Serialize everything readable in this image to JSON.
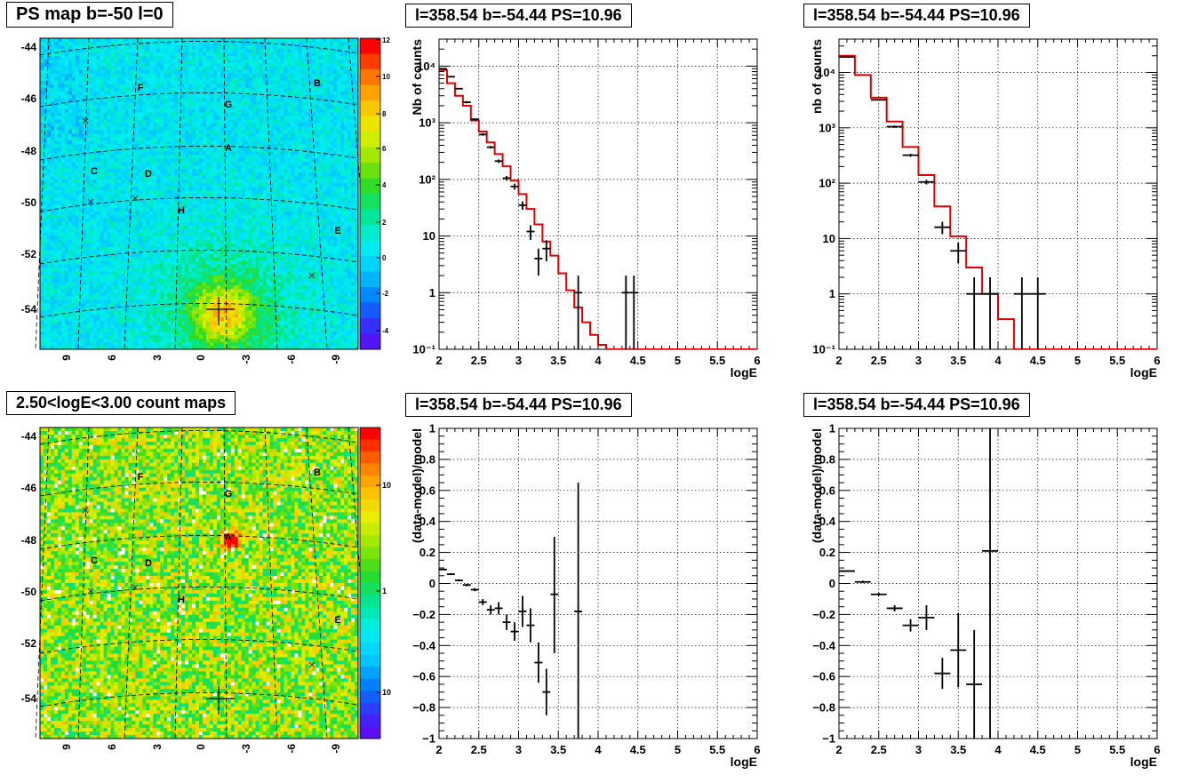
{
  "maps": [
    {
      "title": "PS map b=-50 l=0",
      "kind": "ps",
      "y_ticks": [
        "-44",
        "-46",
        "-48",
        "-50",
        "-52",
        "-54"
      ],
      "x_ticks": [
        "9",
        "6",
        "3",
        "0",
        "-3",
        "-6",
        "-9"
      ],
      "colorbar_ticks": [
        "12",
        "10",
        "8",
        "6",
        "4",
        "2",
        "0",
        "-2",
        "-4"
      ],
      "labels": [
        "A",
        "B",
        "C",
        "D",
        "E",
        "F",
        "G",
        "H"
      ]
    },
    {
      "title": "2.50<logE<3.00 count maps",
      "kind": "count",
      "y_ticks": [
        "-44",
        "-46",
        "-48",
        "-50",
        "-52",
        "-54"
      ],
      "x_ticks": [
        "9",
        "6",
        "3",
        "0",
        "-3",
        "-6",
        "-9"
      ],
      "colorbar_ticks": [
        "10",
        "1",
        "10⁻¹"
      ],
      "labels": [
        "A",
        "B",
        "C",
        "D",
        "E",
        "F",
        "G",
        "H"
      ]
    }
  ],
  "chart_data": [
    {
      "type": "line",
      "title": "l=358.54 b=-54.44 PS=10.96",
      "xlabel": "logE",
      "ylabel": "Nb of counts",
      "xlim": [
        2,
        6
      ],
      "ylim": [
        0.1,
        30000
      ],
      "yscale": "log",
      "grid": true,
      "x_ticks": [
        "2",
        "2.5",
        "3",
        "3.5",
        "4",
        "4.5",
        "5",
        "5.5",
        "6"
      ],
      "y_ticks": [
        {
          "v": 0.1,
          "label": "10⁻¹"
        },
        {
          "v": 1,
          "label": "1"
        },
        {
          "v": 10,
          "label": "10"
        },
        {
          "v": 100,
          "label": "10²"
        },
        {
          "v": 1000,
          "label": "10³"
        },
        {
          "v": 10000,
          "label": "10⁴"
        }
      ],
      "model_edges": [
        2,
        2.1,
        2.2,
        2.3,
        2.4,
        2.5,
        2.6,
        2.7,
        2.8,
        2.9,
        3,
        3.1,
        3.2,
        3.3,
        3.4,
        3.5,
        3.6,
        3.7,
        3.8,
        3.9,
        4,
        4.1,
        4.2,
        6
      ],
      "model_values": [
        8500,
        5000,
        3000,
        2000,
        1100,
        700,
        450,
        280,
        170,
        95,
        55,
        30,
        16,
        8,
        4.5,
        2.2,
        1.1,
        0.55,
        0.3,
        0.18,
        0.12,
        0.1,
        0.1
      ],
      "data_points": [
        {
          "x": 2.05,
          "y": 9000,
          "ylo": 8800,
          "yhi": 9200
        },
        {
          "x": 2.15,
          "y": 6500,
          "ylo": 6350,
          "yhi": 6650
        },
        {
          "x": 2.25,
          "y": 4000,
          "ylo": 3900,
          "yhi": 4100
        },
        {
          "x": 2.35,
          "y": 2300,
          "ylo": 2200,
          "yhi": 2400
        },
        {
          "x": 2.45,
          "y": 1150,
          "ylo": 1100,
          "yhi": 1200
        },
        {
          "x": 2.55,
          "y": 620,
          "ylo": 590,
          "yhi": 650
        },
        {
          "x": 2.65,
          "y": 370,
          "ylo": 350,
          "yhi": 390
        },
        {
          "x": 2.75,
          "y": 210,
          "ylo": 195,
          "yhi": 225
        },
        {
          "x": 2.85,
          "y": 105,
          "ylo": 95,
          "yhi": 115
        },
        {
          "x": 2.95,
          "y": 75,
          "ylo": 66,
          "yhi": 84
        },
        {
          "x": 3.05,
          "y": 35,
          "ylo": 29,
          "yhi": 41
        },
        {
          "x": 3.15,
          "y": 12,
          "ylo": 8.5,
          "yhi": 15.5
        },
        {
          "x": 3.25,
          "y": 4,
          "ylo": 2,
          "yhi": 6
        },
        {
          "x": 3.35,
          "y": 6,
          "ylo": 3.6,
          "yhi": 8.4
        },
        {
          "x": 3.75,
          "y": 1,
          "ylo": 0.1,
          "yhi": 2
        },
        {
          "x": 4.35,
          "y": 1,
          "ylo": 0.1,
          "yhi": 2
        },
        {
          "x": 4.45,
          "y": 1,
          "ylo": 0.1,
          "yhi": 2
        }
      ]
    },
    {
      "type": "line",
      "title": "l=358.54 b=-54.44 PS=10.96",
      "xlabel": "logE",
      "ylabel": "nb of counts",
      "xlim": [
        2,
        6
      ],
      "ylim": [
        0.1,
        40000
      ],
      "yscale": "log",
      "grid": true,
      "x_ticks": [
        "2",
        "2.5",
        "3",
        "3.5",
        "4",
        "4.5",
        "5",
        "5.5",
        "6"
      ],
      "y_ticks": [
        {
          "v": 0.1,
          "label": "10⁻¹"
        },
        {
          "v": 1,
          "label": "1"
        },
        {
          "v": 10,
          "label": "10"
        },
        {
          "v": 100,
          "label": "10²"
        },
        {
          "v": 1000,
          "label": "10³"
        },
        {
          "v": 10000,
          "label": "10⁴"
        }
      ],
      "model_edges": [
        2,
        2.2,
        2.4,
        2.6,
        2.8,
        3,
        3.2,
        3.4,
        3.6,
        3.8,
        4,
        4.2,
        6
      ],
      "model_values": [
        20000,
        9000,
        3500,
        1300,
        450,
        140,
        38,
        11,
        3,
        1,
        0.35,
        0.1
      ],
      "data_points": [
        {
          "x": 2.1,
          "y": 19000,
          "ylo": 18800,
          "yhi": 19200
        },
        {
          "x": 2.5,
          "y": 3200,
          "ylo": 3100,
          "yhi": 3300
        },
        {
          "x": 2.7,
          "y": 1050,
          "ylo": 1000,
          "yhi": 1100
        },
        {
          "x": 2.9,
          "y": 320,
          "ylo": 300,
          "yhi": 340
        },
        {
          "x": 3.1,
          "y": 105,
          "ylo": 95,
          "yhi": 115
        },
        {
          "x": 3.3,
          "y": 16,
          "ylo": 12,
          "yhi": 20
        },
        {
          "x": 3.5,
          "y": 6,
          "ylo": 3.6,
          "yhi": 8.4
        },
        {
          "x": 3.7,
          "y": 1,
          "ylo": 0.1,
          "yhi": 2
        },
        {
          "x": 3.9,
          "y": 1,
          "ylo": 0.1,
          "yhi": 2
        },
        {
          "x": 4.3,
          "y": 1,
          "ylo": 0.1,
          "yhi": 2
        },
        {
          "x": 4.5,
          "y": 1,
          "ylo": 0.1,
          "yhi": 2
        }
      ]
    },
    {
      "type": "scatter",
      "title": "l=358.54 b=-54.44 PS=10.96",
      "xlabel": "logE",
      "ylabel": "(data-model)/model",
      "xlim": [
        2,
        6
      ],
      "ylim": [
        -1,
        1
      ],
      "grid": true,
      "x_ticks": [
        "2",
        "2.5",
        "3",
        "3.5",
        "4",
        "4.5",
        "5",
        "5.5",
        "6"
      ],
      "y_ticks": [
        {
          "v": -1,
          "label": "−1"
        },
        {
          "v": -0.8,
          "label": "−0.8"
        },
        {
          "v": -0.6,
          "label": "−0.6"
        },
        {
          "v": -0.4,
          "label": "−0.4"
        },
        {
          "v": -0.2,
          "label": "−0.2"
        },
        {
          "v": 0,
          "label": "0"
        },
        {
          "v": 0.2,
          "label": "0.2"
        },
        {
          "v": 0.4,
          "label": "0.4"
        },
        {
          "v": 0.6,
          "label": "0.6"
        },
        {
          "v": 0.8,
          "label": "0.8"
        },
        {
          "v": 1,
          "label": "1"
        }
      ],
      "data_points": [
        {
          "x": 2.05,
          "y": 0.09,
          "ylo": 0.085,
          "yhi": 0.095
        },
        {
          "x": 2.15,
          "y": 0.06,
          "ylo": 0.055,
          "yhi": 0.065
        },
        {
          "x": 2.25,
          "y": 0.02,
          "ylo": 0.014,
          "yhi": 0.026
        },
        {
          "x": 2.35,
          "y": -0.01,
          "ylo": -0.018,
          "yhi": -0.002
        },
        {
          "x": 2.45,
          "y": -0.04,
          "ylo": -0.05,
          "yhi": -0.03
        },
        {
          "x": 2.55,
          "y": -0.12,
          "ylo": -0.14,
          "yhi": -0.1
        },
        {
          "x": 2.65,
          "y": -0.17,
          "ylo": -0.2,
          "yhi": -0.14
        },
        {
          "x": 2.75,
          "y": -0.16,
          "ylo": -0.2,
          "yhi": -0.12
        },
        {
          "x": 2.85,
          "y": -0.25,
          "ylo": -0.3,
          "yhi": -0.2
        },
        {
          "x": 2.95,
          "y": -0.31,
          "ylo": -0.37,
          "yhi": -0.25
        },
        {
          "x": 3.05,
          "y": -0.18,
          "ylo": -0.28,
          "yhi": -0.08
        },
        {
          "x": 3.15,
          "y": -0.27,
          "ylo": -0.38,
          "yhi": -0.16
        },
        {
          "x": 3.25,
          "y": -0.51,
          "ylo": -0.64,
          "yhi": -0.38
        },
        {
          "x": 3.35,
          "y": -0.7,
          "ylo": -0.85,
          "yhi": -0.55
        },
        {
          "x": 3.45,
          "y": -0.07,
          "ylo": -0.45,
          "yhi": 0.3
        },
        {
          "x": 3.75,
          "y": -0.18,
          "ylo": -1,
          "yhi": 0.65
        }
      ]
    },
    {
      "type": "scatter",
      "title": "l=358.54 b=-54.44 PS=10.96",
      "xlabel": "logE",
      "ylabel": "(data-model)/model",
      "xlim": [
        2,
        6
      ],
      "ylim": [
        -1,
        1
      ],
      "grid": true,
      "x_ticks": [
        "2",
        "2.5",
        "3",
        "3.5",
        "4",
        "4.5",
        "5",
        "5.5",
        "6"
      ],
      "y_ticks": [
        {
          "v": -1,
          "label": "−1"
        },
        {
          "v": -0.8,
          "label": "−0.8"
        },
        {
          "v": -0.6,
          "label": "−0.6"
        },
        {
          "v": -0.4,
          "label": "−0.4"
        },
        {
          "v": -0.2,
          "label": "−0.2"
        },
        {
          "v": 0,
          "label": "0"
        },
        {
          "v": 0.2,
          "label": "0.2"
        },
        {
          "v": 0.4,
          "label": "0.4"
        },
        {
          "v": 0.6,
          "label": "0.6"
        },
        {
          "v": 0.8,
          "label": "0.8"
        },
        {
          "v": 1,
          "label": "1"
        }
      ],
      "data_points": [
        {
          "x": 2.1,
          "y": 0.08,
          "ylo": 0.075,
          "yhi": 0.085
        },
        {
          "x": 2.3,
          "y": 0.01,
          "ylo": 0.002,
          "yhi": 0.018
        },
        {
          "x": 2.5,
          "y": -0.07,
          "ylo": -0.08,
          "yhi": -0.06
        },
        {
          "x": 2.7,
          "y": -0.16,
          "ylo": -0.18,
          "yhi": -0.14
        },
        {
          "x": 2.9,
          "y": -0.27,
          "ylo": -0.31,
          "yhi": -0.23
        },
        {
          "x": 3.1,
          "y": -0.22,
          "ylo": -0.3,
          "yhi": -0.14
        },
        {
          "x": 3.3,
          "y": -0.58,
          "ylo": -0.68,
          "yhi": -0.48
        },
        {
          "x": 3.5,
          "y": -0.43,
          "ylo": -0.67,
          "yhi": -0.19
        },
        {
          "x": 3.7,
          "y": -0.65,
          "ylo": -1,
          "yhi": -0.3
        },
        {
          "x": 3.9,
          "y": 0.21,
          "ylo": -1,
          "yhi": 1
        }
      ]
    }
  ]
}
